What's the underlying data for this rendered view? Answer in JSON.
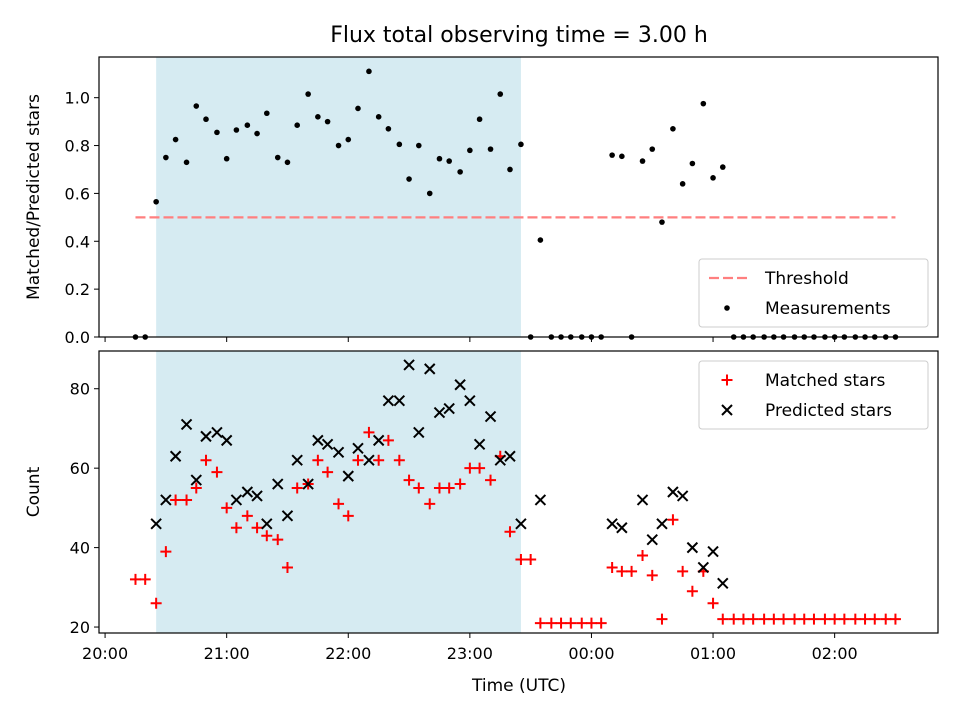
{
  "figure": {
    "title": "Flux total observing time = 3.00 h",
    "xlabel": "Time (UTC)",
    "x_ticks": [
      "20:00",
      "21:00",
      "22:00",
      "23:00",
      "00:00",
      "01:00",
      "02:00"
    ]
  },
  "colors": {
    "span": "#add8e6",
    "threshold": "#ff7f7f",
    "measurements": "#000000",
    "matched": "#ff0000",
    "predicted": "#000000"
  },
  "chart_data": [
    {
      "type": "scatter",
      "ylabel": "Matched/Predicted stars",
      "x_unit": "hours after 20:00 UTC",
      "xlim": [
        -0.05,
        6.85
      ],
      "ylim": [
        0.0,
        1.17
      ],
      "y_ticks": [
        "0.0",
        "0.2",
        "0.4",
        "0.6",
        "0.8",
        "1.0"
      ],
      "span": [
        0.42,
        3.42
      ],
      "threshold": {
        "name": "Threshold",
        "y": 0.5,
        "x_range": [
          0.25,
          6.5
        ]
      },
      "legend": {
        "loc": "lower right",
        "entries": [
          "Threshold",
          "Measurements"
        ]
      },
      "series": [
        {
          "name": "Measurements",
          "marker": "dot",
          "points": [
            [
              0.25,
              0.0
            ],
            [
              0.33,
              0.0
            ],
            [
              0.42,
              0.565
            ],
            [
              0.5,
              0.75
            ],
            [
              0.58,
              0.825
            ],
            [
              0.67,
              0.73
            ],
            [
              0.75,
              0.965
            ],
            [
              0.83,
              0.91
            ],
            [
              0.92,
              0.855
            ],
            [
              1.0,
              0.745
            ],
            [
              1.08,
              0.865
            ],
            [
              1.17,
              0.885
            ],
            [
              1.25,
              0.85
            ],
            [
              1.33,
              0.935
            ],
            [
              1.42,
              0.75
            ],
            [
              1.5,
              0.73
            ],
            [
              1.58,
              0.885
            ],
            [
              1.67,
              1.015
            ],
            [
              1.75,
              0.92
            ],
            [
              1.83,
              0.9
            ],
            [
              1.92,
              0.8
            ],
            [
              2.0,
              0.825
            ],
            [
              2.08,
              0.955
            ],
            [
              2.17,
              1.11
            ],
            [
              2.25,
              0.92
            ],
            [
              2.33,
              0.87
            ],
            [
              2.42,
              0.805
            ],
            [
              2.5,
              0.66
            ],
            [
              2.58,
              0.8
            ],
            [
              2.67,
              0.6
            ],
            [
              2.75,
              0.745
            ],
            [
              2.83,
              0.735
            ],
            [
              2.92,
              0.69
            ],
            [
              3.0,
              0.78
            ],
            [
              3.08,
              0.91
            ],
            [
              3.17,
              0.785
            ],
            [
              3.25,
              1.015
            ],
            [
              3.33,
              0.7
            ],
            [
              3.42,
              0.805
            ],
            [
              3.5,
              0.0
            ],
            [
              3.58,
              0.405
            ],
            [
              3.67,
              0.0
            ],
            [
              3.75,
              0.0
            ],
            [
              3.83,
              0.0
            ],
            [
              3.92,
              0.0
            ],
            [
              4.0,
              0.0
            ],
            [
              4.08,
              0.0
            ],
            [
              4.17,
              0.76
            ],
            [
              4.25,
              0.755
            ],
            [
              4.33,
              0.0
            ],
            [
              4.42,
              0.735
            ],
            [
              4.5,
              0.785
            ],
            [
              4.58,
              0.48
            ],
            [
              4.67,
              0.87
            ],
            [
              4.75,
              0.64
            ],
            [
              4.83,
              0.725
            ],
            [
              4.92,
              0.975
            ],
            [
              5.0,
              0.665
            ],
            [
              5.08,
              0.71
            ],
            [
              5.17,
              0.0
            ],
            [
              5.25,
              0.0
            ],
            [
              5.33,
              0.0
            ],
            [
              5.42,
              0.0
            ],
            [
              5.5,
              0.0
            ],
            [
              5.58,
              0.0
            ],
            [
              5.67,
              0.0
            ],
            [
              5.75,
              0.0
            ],
            [
              5.83,
              0.0
            ],
            [
              5.92,
              0.0
            ],
            [
              6.0,
              0.0
            ],
            [
              6.08,
              0.0
            ],
            [
              6.17,
              0.0
            ],
            [
              6.25,
              0.0
            ],
            [
              6.33,
              0.0
            ],
            [
              6.42,
              0.0
            ],
            [
              6.5,
              0.0
            ]
          ]
        }
      ]
    },
    {
      "type": "scatter",
      "ylabel": "Count",
      "x_unit": "hours after 20:00 UTC",
      "xlim": [
        -0.05,
        6.85
      ],
      "ylim": [
        18.5,
        89.5
      ],
      "y_ticks": [
        "20",
        "40",
        "60",
        "80"
      ],
      "span": [
        0.42,
        3.42
      ],
      "legend": {
        "loc": "upper right",
        "entries": [
          "Matched stars",
          "Predicted stars"
        ]
      },
      "series": [
        {
          "name": "Matched stars",
          "marker": "plus",
          "points": [
            [
              0.25,
              32
            ],
            [
              0.33,
              32
            ],
            [
              0.42,
              26
            ],
            [
              0.5,
              39
            ],
            [
              0.58,
              52
            ],
            [
              0.67,
              52
            ],
            [
              0.75,
              55
            ],
            [
              0.83,
              62
            ],
            [
              0.92,
              59
            ],
            [
              1.0,
              50
            ],
            [
              1.08,
              45
            ],
            [
              1.17,
              48
            ],
            [
              1.25,
              45
            ],
            [
              1.33,
              43
            ],
            [
              1.42,
              42
            ],
            [
              1.5,
              35
            ],
            [
              1.58,
              55
            ],
            [
              1.67,
              56
            ],
            [
              1.75,
              62
            ],
            [
              1.83,
              59
            ],
            [
              1.92,
              51
            ],
            [
              2.0,
              48
            ],
            [
              2.08,
              62
            ],
            [
              2.17,
              69
            ],
            [
              2.25,
              62
            ],
            [
              2.33,
              67
            ],
            [
              2.42,
              62
            ],
            [
              2.5,
              57
            ],
            [
              2.58,
              55
            ],
            [
              2.67,
              51
            ],
            [
              2.75,
              55
            ],
            [
              2.83,
              55
            ],
            [
              2.92,
              56
            ],
            [
              3.0,
              60
            ],
            [
              3.08,
              60
            ],
            [
              3.17,
              57
            ],
            [
              3.25,
              63
            ],
            [
              3.33,
              44
            ],
            [
              3.42,
              37
            ],
            [
              3.5,
              37
            ],
            [
              3.58,
              21
            ],
            [
              3.67,
              21
            ],
            [
              3.75,
              21
            ],
            [
              3.83,
              21
            ],
            [
              3.92,
              21
            ],
            [
              4.0,
              21
            ],
            [
              4.08,
              21
            ],
            [
              4.17,
              35
            ],
            [
              4.25,
              34
            ],
            [
              4.33,
              34
            ],
            [
              4.42,
              38
            ],
            [
              4.5,
              33
            ],
            [
              4.58,
              22
            ],
            [
              4.67,
              47
            ],
            [
              4.75,
              34
            ],
            [
              4.83,
              29
            ],
            [
              4.92,
              34
            ],
            [
              5.0,
              26
            ],
            [
              5.08,
              22
            ],
            [
              5.17,
              22
            ],
            [
              5.25,
              22
            ],
            [
              5.33,
              22
            ],
            [
              5.42,
              22
            ],
            [
              5.5,
              22
            ],
            [
              5.58,
              22
            ],
            [
              5.67,
              22
            ],
            [
              5.75,
              22
            ],
            [
              5.83,
              22
            ],
            [
              5.92,
              22
            ],
            [
              6.0,
              22
            ],
            [
              6.08,
              22
            ],
            [
              6.17,
              22
            ],
            [
              6.25,
              22
            ],
            [
              6.33,
              22
            ],
            [
              6.42,
              22
            ],
            [
              6.5,
              22
            ]
          ]
        },
        {
          "name": "Predicted stars",
          "marker": "x",
          "points": [
            [
              0.42,
              46
            ],
            [
              0.5,
              52
            ],
            [
              0.58,
              63
            ],
            [
              0.67,
              71
            ],
            [
              0.75,
              57
            ],
            [
              0.83,
              68
            ],
            [
              0.92,
              69
            ],
            [
              1.0,
              67
            ],
            [
              1.08,
              52
            ],
            [
              1.17,
              54
            ],
            [
              1.25,
              53
            ],
            [
              1.33,
              46
            ],
            [
              1.42,
              56
            ],
            [
              1.5,
              48
            ],
            [
              1.58,
              62
            ],
            [
              1.67,
              56
            ],
            [
              1.75,
              67
            ],
            [
              1.83,
              66
            ],
            [
              1.92,
              64
            ],
            [
              2.0,
              58
            ],
            [
              2.08,
              65
            ],
            [
              2.17,
              62
            ],
            [
              2.25,
              67
            ],
            [
              2.33,
              77
            ],
            [
              2.42,
              77
            ],
            [
              2.5,
              86
            ],
            [
              2.58,
              69
            ],
            [
              2.67,
              85
            ],
            [
              2.75,
              74
            ],
            [
              2.83,
              75
            ],
            [
              2.92,
              81
            ],
            [
              3.0,
              77
            ],
            [
              3.08,
              66
            ],
            [
              3.17,
              73
            ],
            [
              3.25,
              62
            ],
            [
              3.33,
              63
            ],
            [
              3.42,
              46
            ],
            [
              3.58,
              52
            ],
            [
              4.17,
              46
            ],
            [
              4.25,
              45
            ],
            [
              4.42,
              52
            ],
            [
              4.5,
              42
            ],
            [
              4.58,
              46
            ],
            [
              4.67,
              54
            ],
            [
              4.75,
              53
            ],
            [
              4.83,
              40
            ],
            [
              4.92,
              35
            ],
            [
              5.0,
              39
            ],
            [
              5.08,
              31
            ]
          ]
        }
      ]
    }
  ]
}
